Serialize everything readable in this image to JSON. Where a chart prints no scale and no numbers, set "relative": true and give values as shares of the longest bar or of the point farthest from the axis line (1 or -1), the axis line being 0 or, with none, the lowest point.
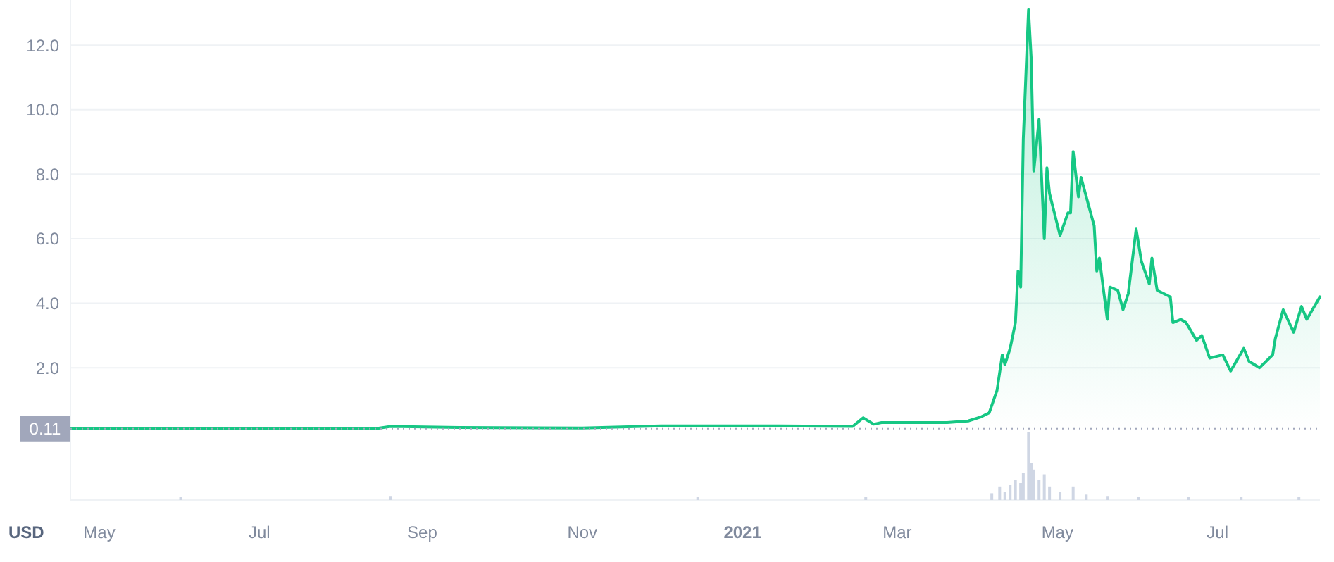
{
  "chart_data": [
    {
      "type": "area",
      "ylabel": "USD",
      "color": "#16c784",
      "x": [
        "2020-04-20",
        "2020-06-15",
        "2020-08-15",
        "2020-08-20",
        "2020-09-15",
        "2020-11-01",
        "2020-12-01",
        "2021-01-15",
        "2021-02-12",
        "2021-02-16",
        "2021-02-20",
        "2021-02-23",
        "2021-03-20",
        "2021-03-28",
        "2021-04-02",
        "2021-04-05",
        "2021-04-08",
        "2021-04-10",
        "2021-04-11",
        "2021-04-13",
        "2021-04-15",
        "2021-04-16",
        "2021-04-17",
        "2021-04-18",
        "2021-04-20",
        "2021-04-21",
        "2021-04-22",
        "2021-04-24",
        "2021-04-26",
        "2021-04-27",
        "2021-04-28",
        "2021-05-02",
        "2021-05-05",
        "2021-05-06",
        "2021-05-07",
        "2021-05-09",
        "2021-05-10",
        "2021-05-15",
        "2021-05-16",
        "2021-05-17",
        "2021-05-20",
        "2021-05-21",
        "2021-05-24",
        "2021-05-26",
        "2021-05-28",
        "2021-05-31",
        "2021-06-02",
        "2021-06-05",
        "2021-06-06",
        "2021-06-08",
        "2021-06-13",
        "2021-06-14",
        "2021-06-17",
        "2021-06-19",
        "2021-06-23",
        "2021-06-25",
        "2021-06-28",
        "2021-07-03",
        "2021-07-06",
        "2021-07-11",
        "2021-07-13",
        "2021-07-17",
        "2021-07-22",
        "2021-07-23",
        "2021-07-26",
        "2021-07-30",
        "2021-08-02",
        "2021-08-04",
        "2021-08-09"
      ],
      "values": [
        0.11,
        0.11,
        0.12,
        0.18,
        0.15,
        0.13,
        0.2,
        0.2,
        0.18,
        0.45,
        0.25,
        0.3,
        0.3,
        0.35,
        0.48,
        0.6,
        1.3,
        2.4,
        2.1,
        2.6,
        3.4,
        5.0,
        4.5,
        9.1,
        13.1,
        11.6,
        8.1,
        9.7,
        6.0,
        8.2,
        7.4,
        6.1,
        6.8,
        6.8,
        8.7,
        7.3,
        7.9,
        6.4,
        5.0,
        5.4,
        3.5,
        4.5,
        4.4,
        3.8,
        4.3,
        6.3,
        5.3,
        4.6,
        5.4,
        4.4,
        4.2,
        3.4,
        3.5,
        3.4,
        2.85,
        3.0,
        2.3,
        2.4,
        1.9,
        2.6,
        2.2,
        2.0,
        2.4,
        2.9,
        3.8,
        3.1,
        3.9,
        3.5,
        4.2
      ],
      "xlim": [
        "2020-04-20",
        "2021-08-09"
      ],
      "xticks": [
        {
          "value": "2020-05-01",
          "label": "May"
        },
        {
          "value": "2020-07-01",
          "label": "Jul"
        },
        {
          "value": "2020-09-01",
          "label": "Sep"
        },
        {
          "value": "2020-11-01",
          "label": "Nov"
        },
        {
          "value": "2021-01-01",
          "label": "2021"
        },
        {
          "value": "2021-03-01",
          "label": "Mar"
        },
        {
          "value": "2021-05-01",
          "label": "May"
        },
        {
          "value": "2021-07-01",
          "label": "Jul"
        }
      ],
      "ylim": [
        -2.1,
        13.4
      ],
      "yticks": [
        {
          "value": 2,
          "label": "2.0"
        },
        {
          "value": 4,
          "label": "4.0"
        },
        {
          "value": 6,
          "label": "6.0"
        },
        {
          "value": 8,
          "label": "8.0"
        },
        {
          "value": 10,
          "label": "10.0"
        },
        {
          "value": 12,
          "label": "12.0"
        }
      ],
      "grid": "y",
      "ref_lines": [
        {
          "axis": "y",
          "value": 0.11,
          "label": "0.11",
          "line_style": "dotted",
          "color": "#a1a7bb"
        }
      ]
    },
    {
      "type": "bar",
      "relative": true,
      "color": "#cfd6e4",
      "x": [
        "2020-06-01",
        "2020-08-20",
        "2020-12-15",
        "2021-02-17",
        "2021-04-06",
        "2021-04-09",
        "2021-04-11",
        "2021-04-13",
        "2021-04-15",
        "2021-04-17",
        "2021-04-18",
        "2021-04-20",
        "2021-04-21",
        "2021-04-22",
        "2021-04-24",
        "2021-04-26",
        "2021-04-28",
        "2021-05-02",
        "2021-05-07",
        "2021-05-12",
        "2021-05-20",
        "2021-06-01",
        "2021-06-20",
        "2021-07-10",
        "2021-08-01"
      ],
      "values": [
        0.05,
        0.06,
        0.05,
        0.05,
        0.1,
        0.2,
        0.12,
        0.22,
        0.3,
        0.25,
        0.4,
        1,
        0.55,
        0.45,
        0.3,
        0.38,
        0.2,
        0.12,
        0.2,
        0.08,
        0.06,
        0.05,
        0.05,
        0.05,
        0.05
      ],
      "xlim": [
        "2020-04-20",
        "2021-08-09"
      ]
    }
  ]
}
